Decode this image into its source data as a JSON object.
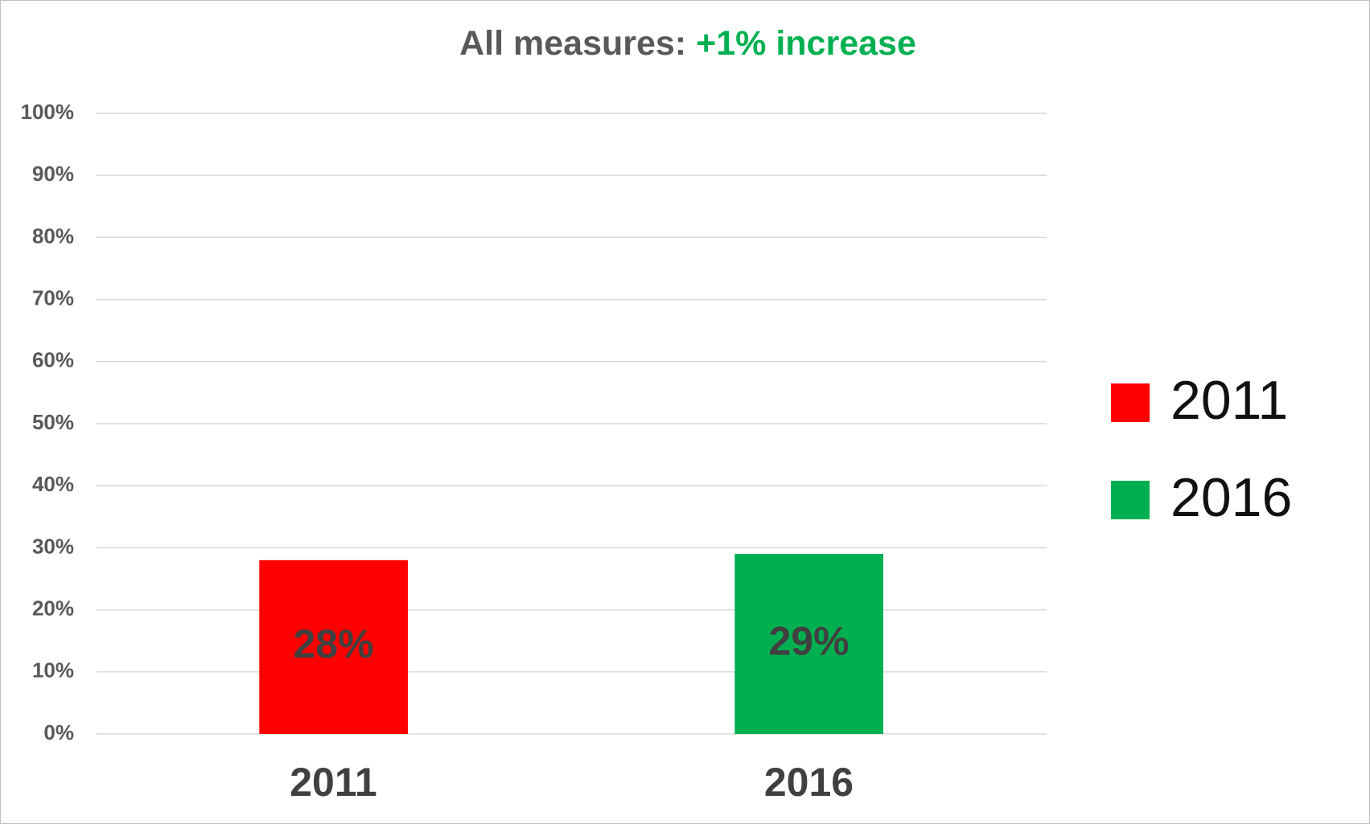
{
  "chart_data": {
    "type": "bar",
    "title": "All measures:",
    "title_highlight": "+1% increase",
    "title_highlight_color": "#00b050",
    "categories": [
      "2011",
      "2016"
    ],
    "values": [
      28,
      29
    ],
    "value_labels": [
      "28%",
      "29%"
    ],
    "colors": [
      "#ff0000",
      "#00b050"
    ],
    "ylim": [
      0,
      100
    ],
    "yticks": [
      {
        "value": 0,
        "label": "0%"
      },
      {
        "value": 10,
        "label": "10%"
      },
      {
        "value": 20,
        "label": "20%"
      },
      {
        "value": 30,
        "label": "30%"
      },
      {
        "value": 40,
        "label": "40%"
      },
      {
        "value": 50,
        "label": "50%"
      },
      {
        "value": 60,
        "label": "60%"
      },
      {
        "value": 70,
        "label": "70%"
      },
      {
        "value": 80,
        "label": "80%"
      },
      {
        "value": 90,
        "label": "90%"
      },
      {
        "value": 100,
        "label": "100%"
      }
    ],
    "grid": true,
    "legend": "right"
  }
}
